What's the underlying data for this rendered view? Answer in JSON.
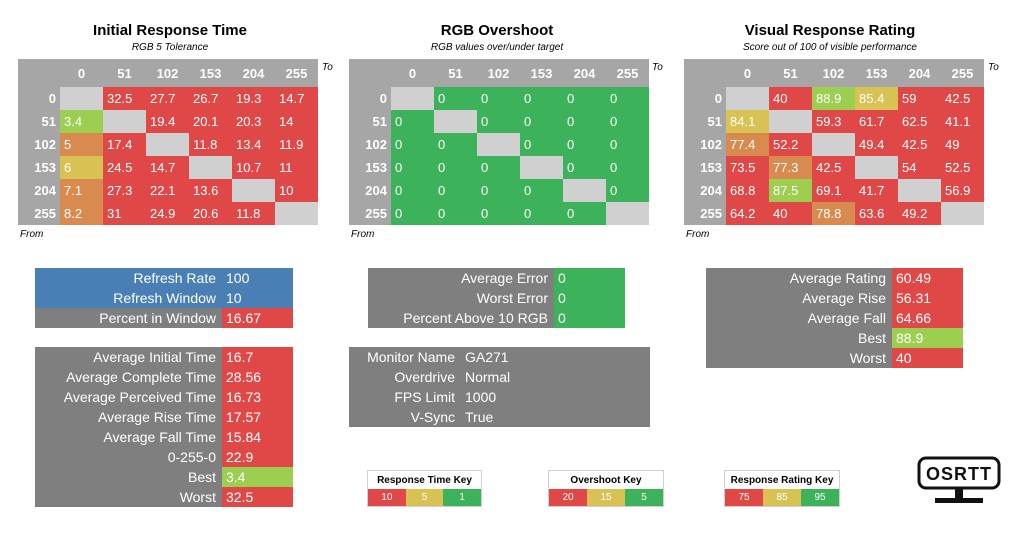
{
  "colors": {
    "red": "#e04848",
    "green": "#3cb35a",
    "lightgreen": "#9ccf50",
    "yellow": "#d8c254",
    "orange": "#d98b4f",
    "blue": "#4a7fb5",
    "gray": "#7f7f7f",
    "diag": "#d0d0d0"
  },
  "axis": {
    "to": "To",
    "from": "From",
    "levels": [
      "0",
      "51",
      "102",
      "153",
      "204",
      "255"
    ]
  },
  "panels": [
    {
      "title": "Initial Response Time",
      "subtitle": "RGB 5 Tolerance",
      "rows": [
        [
          null,
          "32.5",
          "27.7",
          "26.7",
          "19.3",
          "14.7"
        ],
        [
          "3.4",
          null,
          "19.4",
          "20.1",
          "20.3",
          "14"
        ],
        [
          "5",
          "17.4",
          null,
          "11.8",
          "13.4",
          "11.9"
        ],
        [
          "6",
          "24.5",
          "14.7",
          null,
          "10.7",
          "11"
        ],
        [
          "7.1",
          "27.3",
          "22.1",
          "13.6",
          null,
          "10"
        ],
        [
          "8.2",
          "31",
          "24.9",
          "20.6",
          "11.8",
          null
        ]
      ],
      "colors": [
        [
          null,
          "red",
          "red",
          "red",
          "red",
          "red"
        ],
        [
          "lightgreen",
          null,
          "red",
          "red",
          "red",
          "red"
        ],
        [
          "orange",
          "red",
          null,
          "red",
          "red",
          "red"
        ],
        [
          "yellow",
          "red",
          "red",
          null,
          "red",
          "red"
        ],
        [
          "orange",
          "red",
          "red",
          "red",
          null,
          "red"
        ],
        [
          "orange",
          "red",
          "red",
          "red",
          "red",
          null
        ]
      ]
    },
    {
      "title": "RGB Overshoot",
      "subtitle": "RGB values over/under target",
      "rows": [
        [
          null,
          "0",
          "0",
          "0",
          "0",
          "0"
        ],
        [
          "0",
          null,
          "0",
          "0",
          "0",
          "0"
        ],
        [
          "0",
          "0",
          null,
          "0",
          "0",
          "0"
        ],
        [
          "0",
          "0",
          "0",
          null,
          "0",
          "0"
        ],
        [
          "0",
          "0",
          "0",
          "0",
          null,
          "0"
        ],
        [
          "0",
          "0",
          "0",
          "0",
          "0",
          null
        ]
      ],
      "colors": [
        [
          null,
          "green",
          "green",
          "green",
          "green",
          "green"
        ],
        [
          "green",
          null,
          "green",
          "green",
          "green",
          "green"
        ],
        [
          "green",
          "green",
          null,
          "green",
          "green",
          "green"
        ],
        [
          "green",
          "green",
          "green",
          null,
          "green",
          "green"
        ],
        [
          "green",
          "green",
          "green",
          "green",
          null,
          "green"
        ],
        [
          "green",
          "green",
          "green",
          "green",
          "green",
          null
        ]
      ]
    },
    {
      "title": "Visual Response Rating",
      "subtitle": "Score out of 100 of visible performance",
      "rows": [
        [
          null,
          "40",
          "88.9",
          "85.4",
          "59",
          "42.5"
        ],
        [
          "84.1",
          null,
          "59.3",
          "61.7",
          "62.5",
          "41.1"
        ],
        [
          "77.4",
          "52.2",
          null,
          "49.4",
          "42.5",
          "49"
        ],
        [
          "73.5",
          "77.3",
          "42.5",
          null,
          "54",
          "52.5"
        ],
        [
          "68.8",
          "87.5",
          "69.1",
          "41.7",
          null,
          "56.9"
        ],
        [
          "64.2",
          "40",
          "78.8",
          "63.6",
          "49.2",
          null
        ]
      ],
      "colors": [
        [
          null,
          "red",
          "lightgreen",
          "yellow",
          "red",
          "red"
        ],
        [
          "yellow",
          null,
          "red",
          "red",
          "red",
          "red"
        ],
        [
          "orange",
          "red",
          null,
          "red",
          "red",
          "red"
        ],
        [
          "red",
          "orange",
          "red",
          null,
          "red",
          "red"
        ],
        [
          "red",
          "lightgreen",
          "red",
          "red",
          null,
          "red"
        ],
        [
          "red",
          "red",
          "orange",
          "red",
          "red",
          null
        ]
      ]
    }
  ],
  "refresh": [
    {
      "label": "Refresh Rate",
      "value": "100",
      "bg": "blue",
      "vbg": "blue"
    },
    {
      "label": "Refresh Window",
      "value": "10",
      "bg": "blue",
      "vbg": "blue"
    },
    {
      "label": "Percent in Window",
      "value": "16.67",
      "bg": "gray",
      "vbg": "red"
    }
  ],
  "error_stats": [
    {
      "label": "Average Error",
      "value": "0",
      "vbg": "green"
    },
    {
      "label": "Worst Error",
      "value": "0",
      "vbg": "green"
    },
    {
      "label": "Percent Above 10 RGB",
      "value": "0",
      "vbg": "green"
    }
  ],
  "rating_stats": [
    {
      "label": "Average Rating",
      "value": "60.49",
      "vbg": "red"
    },
    {
      "label": "Average Rise",
      "value": "56.31",
      "vbg": "red"
    },
    {
      "label": "Average Fall",
      "value": "64.66",
      "vbg": "red"
    },
    {
      "label": "Best",
      "value": "88.9",
      "vbg": "lightgreen"
    },
    {
      "label": "Worst",
      "value": "40",
      "vbg": "red"
    }
  ],
  "time_stats": [
    {
      "label": "Average Initial Time",
      "value": "16.7",
      "vbg": "red"
    },
    {
      "label": "Average Complete Time",
      "value": "28.56",
      "vbg": "red"
    },
    {
      "label": "Average Perceived Time",
      "value": "16.73",
      "vbg": "red"
    },
    {
      "label": "Average Rise Time",
      "value": "17.57",
      "vbg": "red"
    },
    {
      "label": "Average Fall Time",
      "value": "15.84",
      "vbg": "red"
    },
    {
      "label": "0-255-0",
      "value": "22.9",
      "vbg": "red"
    },
    {
      "label": "Best",
      "value": "3.4",
      "vbg": "lightgreen"
    },
    {
      "label": "Worst",
      "value": "32.5",
      "vbg": "red"
    }
  ],
  "monitor_info": [
    {
      "label": "Monitor Name",
      "value": "GA271"
    },
    {
      "label": "Overdrive",
      "value": "Normal"
    },
    {
      "label": "FPS Limit",
      "value": "1000"
    },
    {
      "label": "V-Sync",
      "value": "True"
    }
  ],
  "keys": [
    {
      "title": "Response Time Key",
      "items": [
        {
          "t": "10",
          "c": "red"
        },
        {
          "t": "5",
          "c": "yellow"
        },
        {
          "t": "1",
          "c": "green"
        }
      ]
    },
    {
      "title": "Overshoot Key",
      "items": [
        {
          "t": "20",
          "c": "red"
        },
        {
          "t": "15",
          "c": "yellow"
        },
        {
          "t": "5",
          "c": "green"
        }
      ]
    },
    {
      "title": "Response Rating Key",
      "items": [
        {
          "t": "75",
          "c": "red"
        },
        {
          "t": "85",
          "c": "yellow"
        },
        {
          "t": "95",
          "c": "green"
        }
      ]
    }
  ],
  "logo": {
    "text": "OSRTT"
  }
}
